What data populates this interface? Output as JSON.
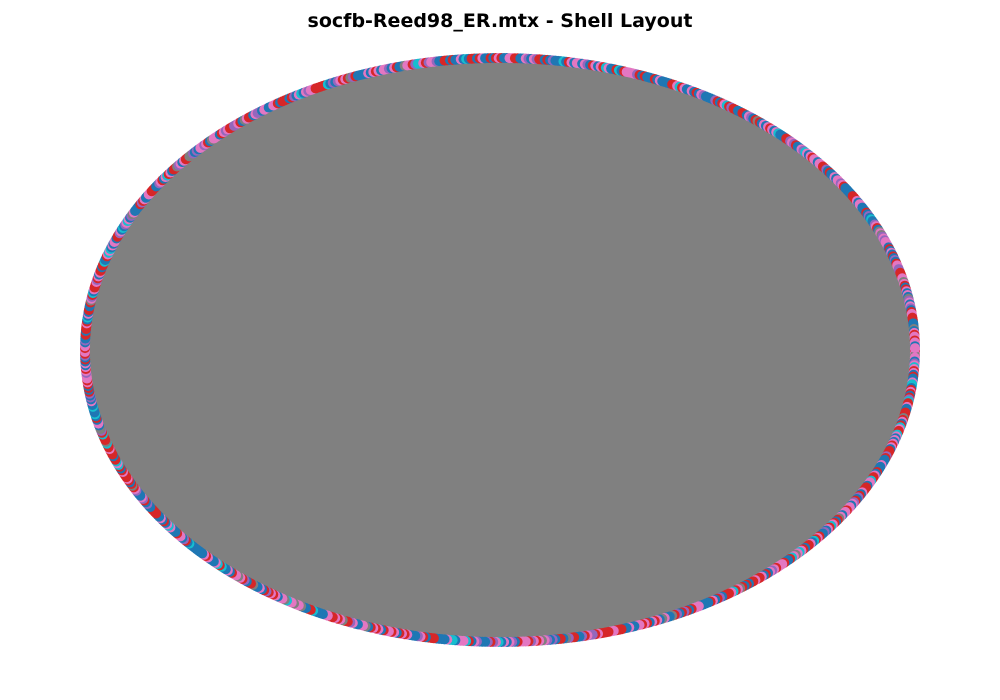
{
  "figure": {
    "title": "socfb-Reed98_ER.mtx - Shell Layout"
  },
  "graph": {
    "layout": "shell",
    "edge_color": "#808080",
    "node_palette": [
      "#1f77b4",
      "#d62728",
      "#e377c2",
      "#17becf",
      "#9467bd",
      "#7f7f7f"
    ],
    "node_count_approx": 962
  }
}
